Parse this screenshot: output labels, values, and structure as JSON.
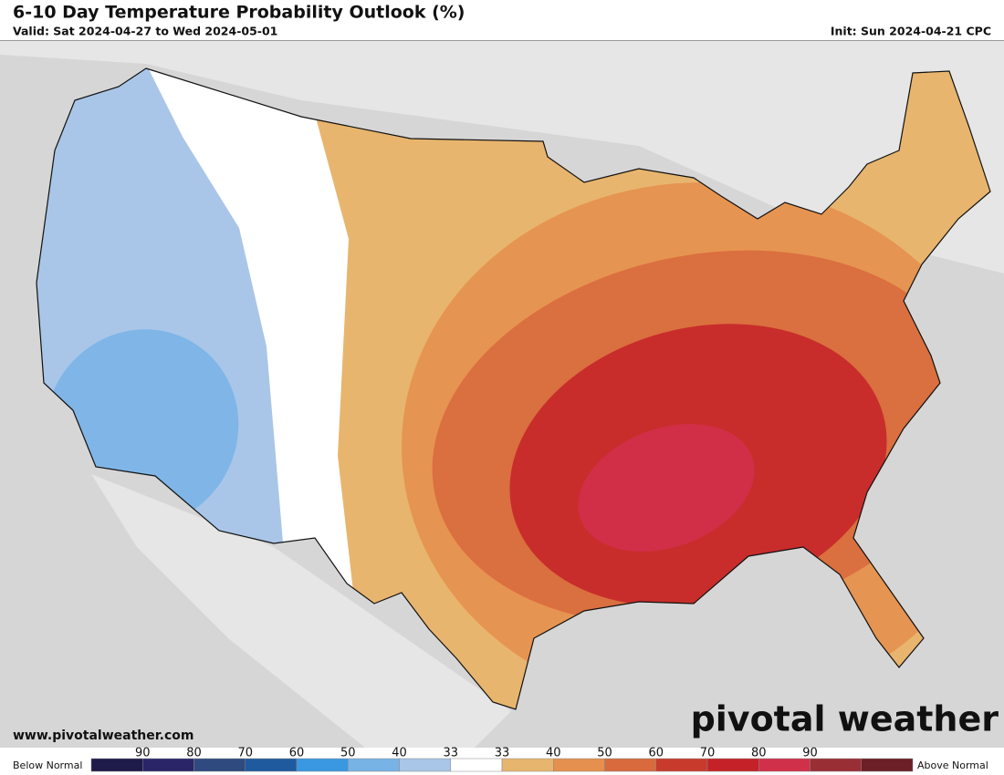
{
  "header": {
    "title": "6-10 Day Temperature Probability Outlook (%)",
    "valid": "Valid: Sat 2024-04-27 to Wed 2024-05-01",
    "init": "Init: Sun 2024-04-21 CPC"
  },
  "footer": {
    "website": "www.pivotalweather.com",
    "logo": "pivotal weather"
  },
  "legend": {
    "below_label": "Below Normal",
    "above_label": "Above Normal",
    "below_ticks": [
      90,
      80,
      70,
      60,
      50,
      40,
      33
    ],
    "above_ticks": [
      33,
      40,
      50,
      60,
      70,
      80,
      90
    ],
    "colors": [
      "#1e1a4a",
      "#2a2568",
      "#2e4a7e",
      "#1f5a9e",
      "#3a98e0",
      "#78b3e6",
      "#a9c6e8",
      "#ffffff",
      "#e8b56e",
      "#e5904e",
      "#d86a3d",
      "#c83a2c",
      "#c42228",
      "#d1304a",
      "#9a2e35",
      "#6b1f26"
    ]
  }
}
